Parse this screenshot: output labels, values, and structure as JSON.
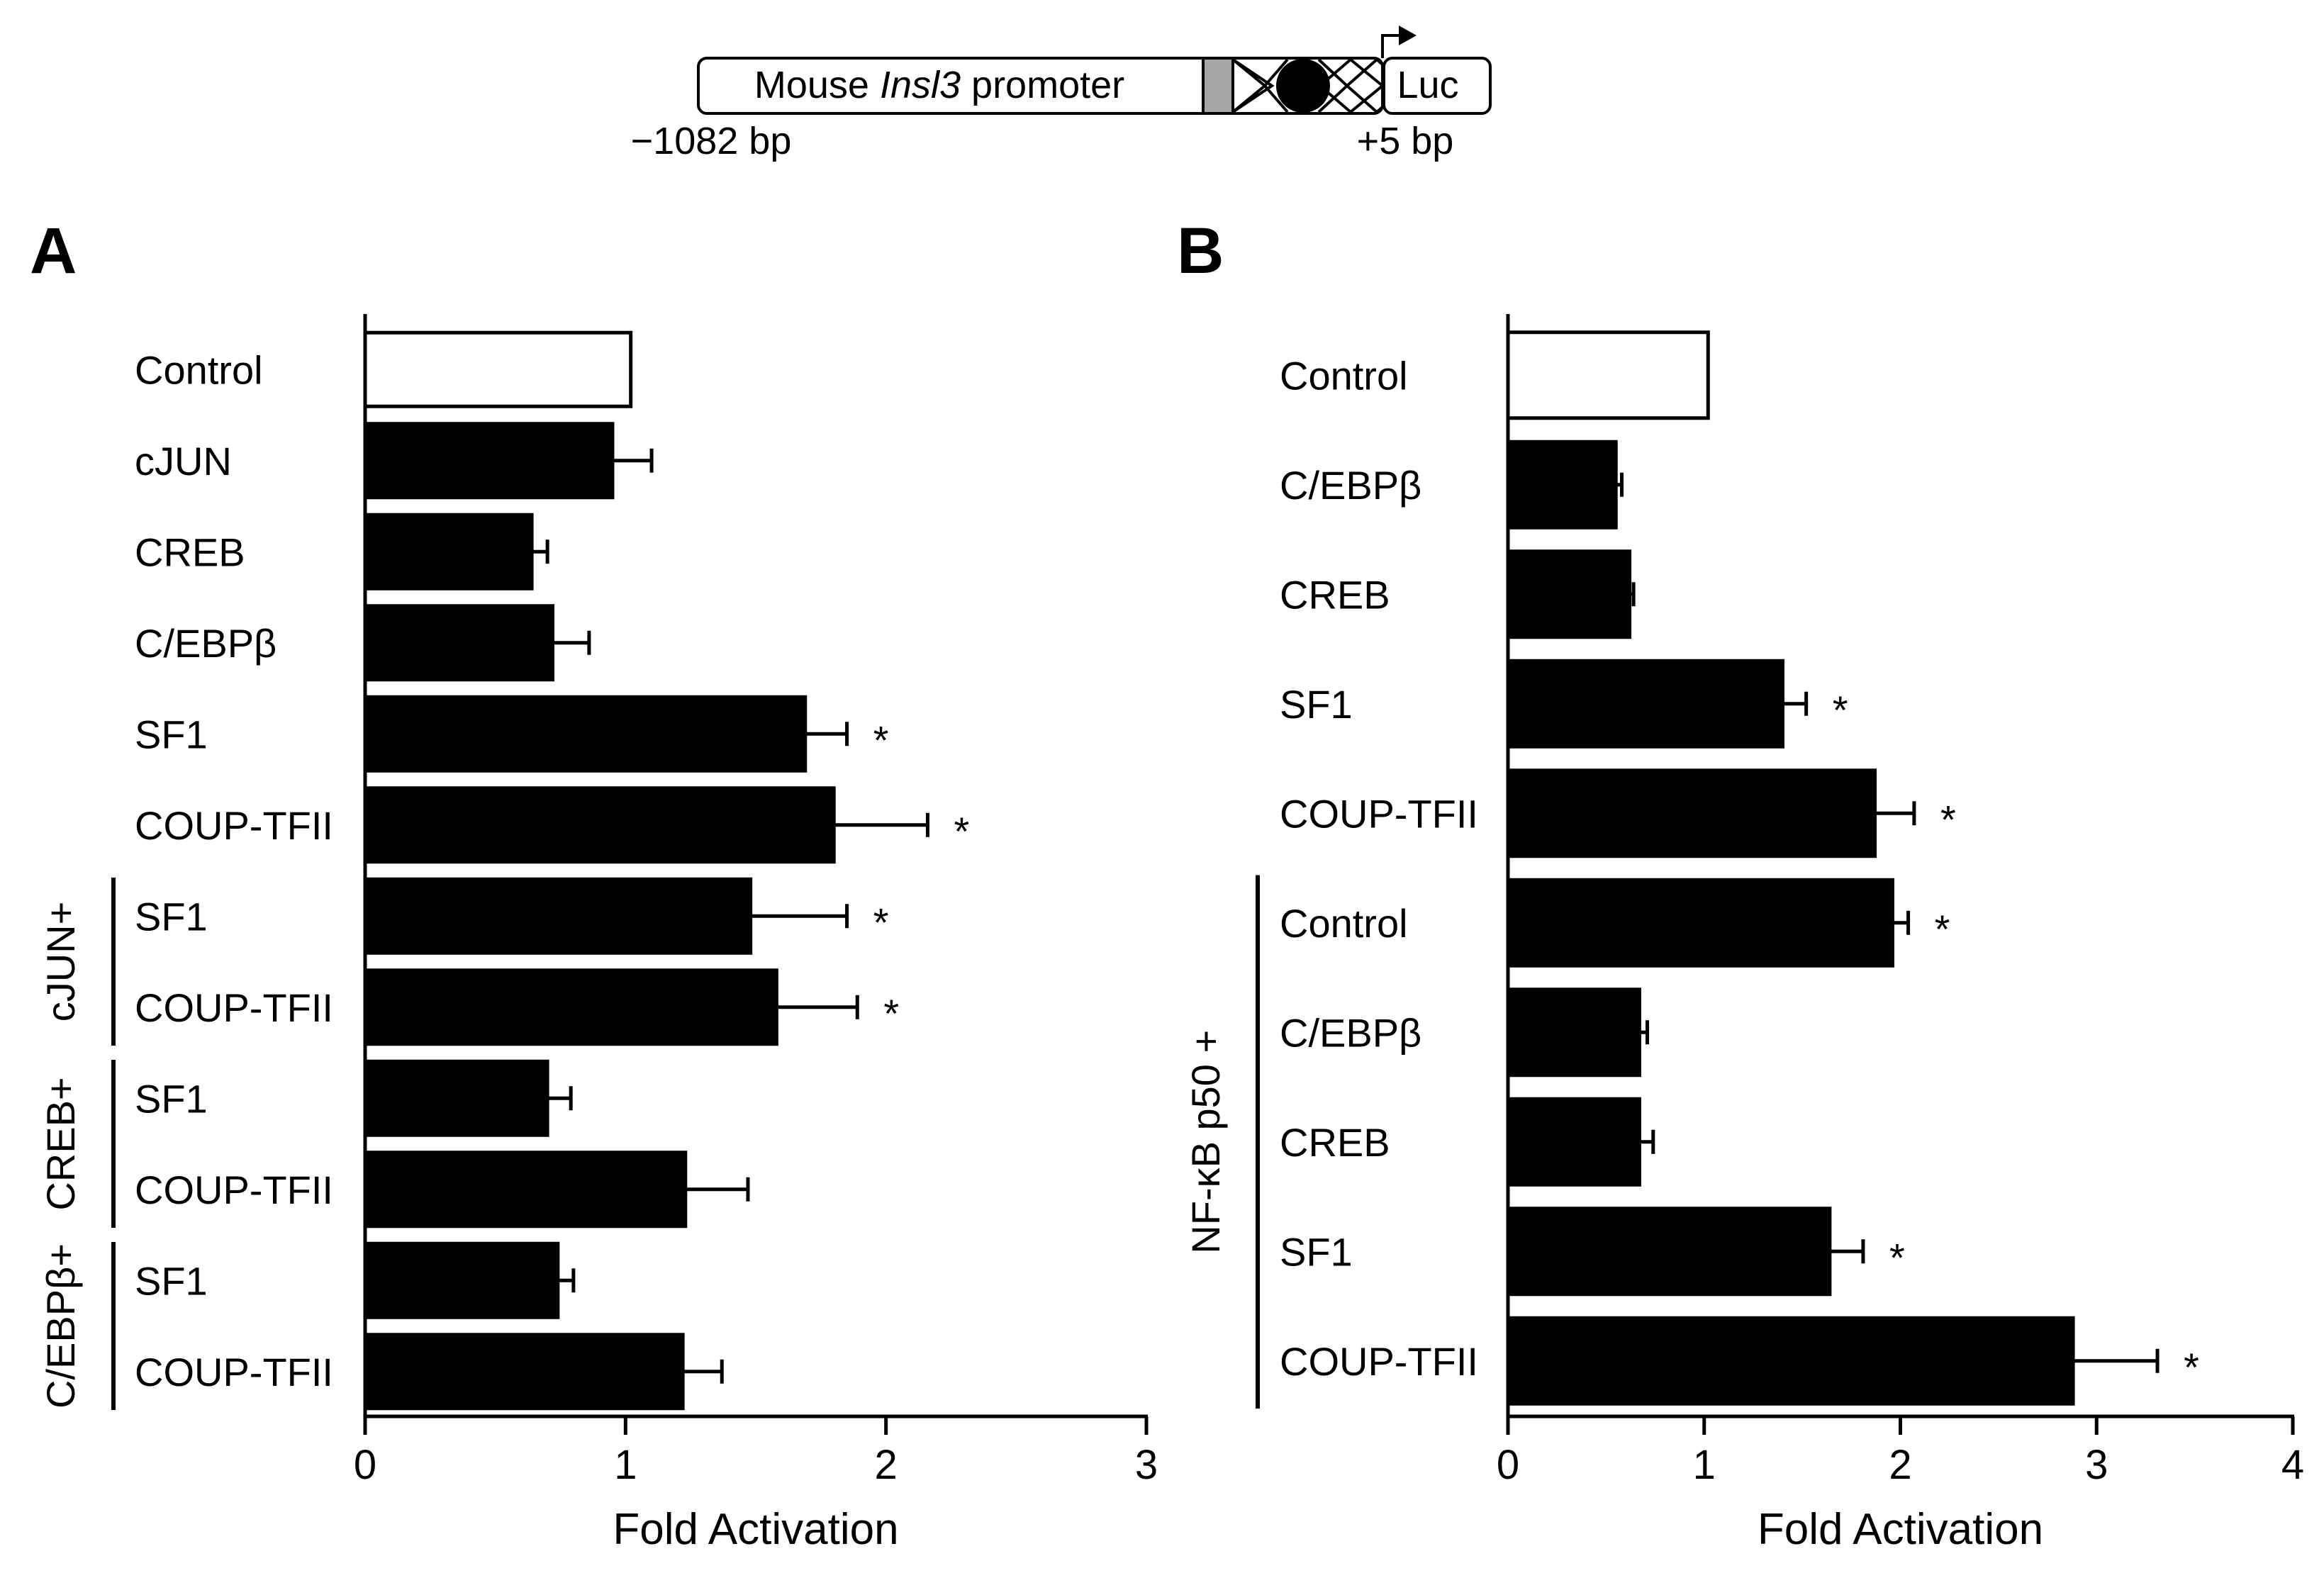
{
  "promoter_diagram": {
    "label_prefix": "Mouse ",
    "label_gene": "Insl3",
    "label_suffix": " promoter",
    "reporter": "Luc",
    "start": "−1082 bp",
    "end": "+5 bp"
  },
  "chart_data": [
    {
      "type": "bar",
      "orientation": "horizontal",
      "panel": "A",
      "xlabel": "Fold Activation",
      "xlim": [
        0,
        3
      ],
      "xticks": [
        "0",
        "1",
        "2",
        "3"
      ],
      "categories": [
        "Control",
        "cJUN",
        "CREB",
        "C/EBPβ",
        "SF1",
        "COUP-TFII",
        "SF1",
        "COUP-TFII",
        "SF1",
        "COUP-TFII",
        "SF1",
        "COUP-TFII"
      ],
      "values": [
        1.02,
        0.95,
        0.64,
        0.72,
        1.69,
        1.8,
        1.48,
        1.58,
        0.7,
        1.23,
        0.74,
        1.22
      ],
      "errors": [
        0,
        0.15,
        0.06,
        0.14,
        0.16,
        0.36,
        0.37,
        0.31,
        0.09,
        0.24,
        0.06,
        0.15
      ],
      "fills": [
        "white",
        "black",
        "black",
        "black",
        "black",
        "black",
        "black",
        "black",
        "black",
        "black",
        "black",
        "black"
      ],
      "significant": [
        false,
        false,
        false,
        false,
        true,
        true,
        true,
        true,
        false,
        false,
        false,
        false
      ],
      "significance_symbol": "*",
      "groups": [
        {
          "label": "cJUN+",
          "start": 6,
          "end": 7
        },
        {
          "label": "CREB+",
          "start": 8,
          "end": 9
        },
        {
          "label": "C/EBPβ+",
          "start": 10,
          "end": 11
        }
      ]
    },
    {
      "type": "bar",
      "orientation": "horizontal",
      "panel": "B",
      "xlabel": "Fold Activation",
      "xlim": [
        0,
        4
      ],
      "xticks": [
        "0",
        "1",
        "2",
        "3",
        "4"
      ],
      "categories": [
        "Control",
        "C/EBPβ",
        "CREB",
        "SF1",
        "COUP-TFII",
        "Control",
        "C/EBPβ",
        "CREB",
        "SF1",
        "COUP-TFII"
      ],
      "values": [
        1.02,
        0.55,
        0.62,
        1.4,
        1.87,
        1.96,
        0.67,
        0.67,
        1.64,
        2.88
      ],
      "errors": [
        0,
        0.03,
        0.02,
        0.12,
        0.2,
        0.08,
        0.04,
        0.07,
        0.17,
        0.43
      ],
      "fills": [
        "white",
        "black",
        "black",
        "black",
        "black",
        "black",
        "black",
        "black",
        "black",
        "black"
      ],
      "significant": [
        false,
        false,
        false,
        true,
        true,
        true,
        false,
        false,
        true,
        true
      ],
      "significance_symbol": "*",
      "groups": [
        {
          "label": "NF-κB p50 +",
          "start": 5,
          "end": 9
        }
      ]
    }
  ]
}
